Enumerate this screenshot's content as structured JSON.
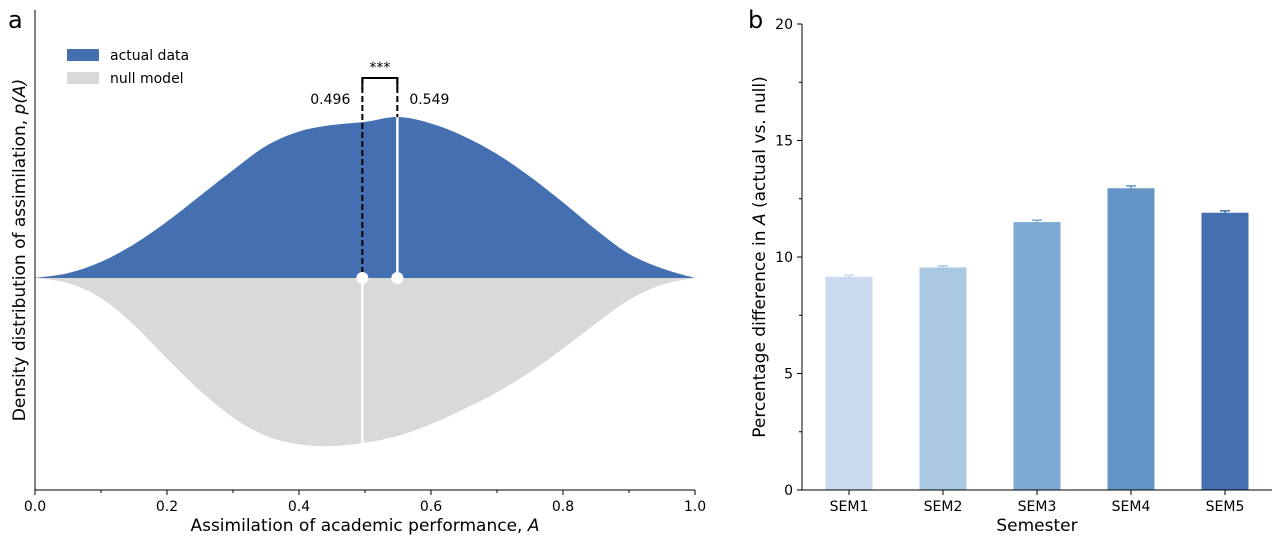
{
  "chart_data": [
    {
      "panel_label": "a",
      "type": "violin",
      "xlabel_text": "Assimilation of academic performance, ",
      "xlabel_var": "A",
      "ylabel_text": "Density distribution of assimilation, ",
      "ylabel_var": "p(A)",
      "xlim": [
        0.0,
        1.0
      ],
      "x_ticks": [
        "0.0",
        "0.2",
        "0.4",
        "0.6",
        "0.8",
        "1.0"
      ],
      "legend": [
        {
          "label": "actual data",
          "color": "#4470b2"
        },
        {
          "label": "null model",
          "color": "#d9d9d9"
        }
      ],
      "series": [
        {
          "name": "actual data",
          "side": "upper",
          "x": [
            0.0,
            0.05,
            0.1,
            0.15,
            0.2,
            0.25,
            0.3,
            0.35,
            0.4,
            0.45,
            0.5,
            0.55,
            0.6,
            0.65,
            0.7,
            0.75,
            0.8,
            0.85,
            0.9,
            0.95,
            1.0
          ],
          "density": [
            0.0,
            0.03,
            0.1,
            0.21,
            0.35,
            0.51,
            0.67,
            0.82,
            0.91,
            0.95,
            0.97,
            1.0,
            0.96,
            0.88,
            0.77,
            0.63,
            0.47,
            0.3,
            0.15,
            0.06,
            0.0
          ],
          "median": 0.549,
          "median_label": "0.549"
        },
        {
          "name": "null model",
          "side": "lower",
          "x": [
            0.0,
            0.05,
            0.1,
            0.15,
            0.2,
            0.25,
            0.3,
            0.35,
            0.4,
            0.45,
            0.5,
            0.55,
            0.6,
            0.65,
            0.7,
            0.75,
            0.8,
            0.85,
            0.9,
            0.95,
            1.0
          ],
          "density": [
            0.0,
            0.03,
            0.12,
            0.28,
            0.48,
            0.67,
            0.83,
            0.94,
            0.99,
            1.0,
            0.98,
            0.94,
            0.87,
            0.78,
            0.68,
            0.56,
            0.42,
            0.27,
            0.13,
            0.04,
            0.0
          ],
          "median": 0.496,
          "median_label": "0.496"
        }
      ],
      "significance": "***"
    },
    {
      "panel_label": "b",
      "type": "bar",
      "xlabel": "Semester",
      "ylabel_text": "Percentage difference in ",
      "ylabel_var": "A",
      "ylabel_tail": " (actual vs. null)",
      "ylim": [
        0,
        20
      ],
      "y_ticks": [
        "0",
        "5",
        "10",
        "15",
        "20"
      ],
      "categories": [
        "SEM1",
        "SEM2",
        "SEM3",
        "SEM4",
        "SEM5"
      ],
      "values": [
        9.15,
        9.55,
        11.5,
        12.95,
        11.9
      ],
      "errors": [
        0.07,
        0.07,
        0.08,
        0.1,
        0.08
      ],
      "colors": [
        "#c9d9ef",
        "#a9c8e2",
        "#7dabd3",
        "#6294c6",
        "#4470b2"
      ]
    }
  ]
}
